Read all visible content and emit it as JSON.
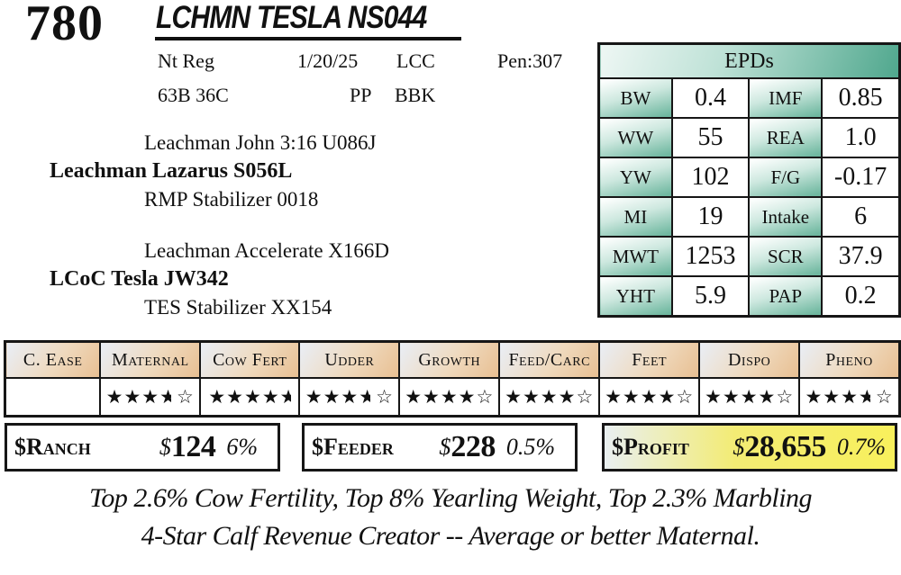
{
  "lot": {
    "number": "780",
    "name": "LCHMN TESLA NS044"
  },
  "info": {
    "registration": "Nt Reg",
    "birth_date": "1/20/25",
    "code1": "LCC",
    "pen": "Pen:307",
    "tattoo": "63B 36C",
    "polled": "PP",
    "code2": "BBK"
  },
  "pedigree": {
    "sire_top": "Leachman John 3:16 U086J",
    "sire_name": "Leachman Lazarus S056L",
    "sire_bottom": "RMP Stabilizer 0018",
    "dam_top": "Leachman Accelerate X166D",
    "dam_name": "LCoC Tesla JW342",
    "dam_bottom": "TES Stabilizer XX154"
  },
  "epds": {
    "title": "EPDs",
    "rows": [
      {
        "l1": "BW",
        "v1": "0.4",
        "l2": "IMF",
        "v2": "0.85"
      },
      {
        "l1": "WW",
        "v1": "55",
        "l2": "REA",
        "v2": "1.0"
      },
      {
        "l1": "YW",
        "v1": "102",
        "l2": "F/G",
        "v2": "-0.17"
      },
      {
        "l1": "MI",
        "v1": "19",
        "l2": "Intake",
        "v2": "6"
      },
      {
        "l1": "MWT",
        "v1": "1253",
        "l2": "SCR",
        "v2": "37.9"
      },
      {
        "l1": "YHT",
        "v1": "5.9",
        "l2": "PAP",
        "v2": "0.2"
      }
    ]
  },
  "traits": {
    "columns": [
      {
        "label": "C. Ease",
        "full": 0,
        "half": false,
        "empty": 0,
        "rating": null
      },
      {
        "label": "Maternal",
        "full": 3,
        "half": true,
        "empty": 1,
        "rating": 3.5
      },
      {
        "label": "Cow Fert",
        "full": 4,
        "half": true,
        "empty": 0,
        "rating": 4.5
      },
      {
        "label": "Udder",
        "full": 3,
        "half": true,
        "empty": 1,
        "rating": 3.5
      },
      {
        "label": "Growth",
        "full": 4,
        "half": false,
        "empty": 1,
        "rating": 4
      },
      {
        "label": "Feed/Carc",
        "full": 4,
        "half": false,
        "empty": 1,
        "rating": 4
      },
      {
        "label": "Feet",
        "full": 4,
        "half": false,
        "empty": 1,
        "rating": 4
      },
      {
        "label": "Dispo",
        "full": 4,
        "half": false,
        "empty": 1,
        "rating": 4
      },
      {
        "label": "Pheno",
        "full": 3,
        "half": true,
        "empty": 1,
        "rating": 3.5
      }
    ],
    "star_full": "★",
    "star_empty": "☆"
  },
  "values": {
    "ranch": {
      "label": "$Ranch",
      "currency": "$",
      "amount": "124",
      "pct": "6%"
    },
    "feeder": {
      "label": "$Feeder",
      "currency": "$",
      "amount": "228",
      "pct": "0.5%"
    },
    "profit": {
      "label": "$Profit",
      "currency": "$",
      "amount": "28,655",
      "pct": "0.7%"
    }
  },
  "footnote": {
    "line1": "Top 2.6% Cow Fertility, Top 8% Yearling Weight, Top 2.3% Marbling",
    "line2": "4-Star Calf Revenue Creator -- Average or better Maternal."
  },
  "colors": {
    "epd_teal": "#4fa78d",
    "trait_tan": "#e8bf92",
    "trait_blue": "#e9eef6",
    "profit_yellow": "#f8f05c",
    "border": "#161616"
  }
}
